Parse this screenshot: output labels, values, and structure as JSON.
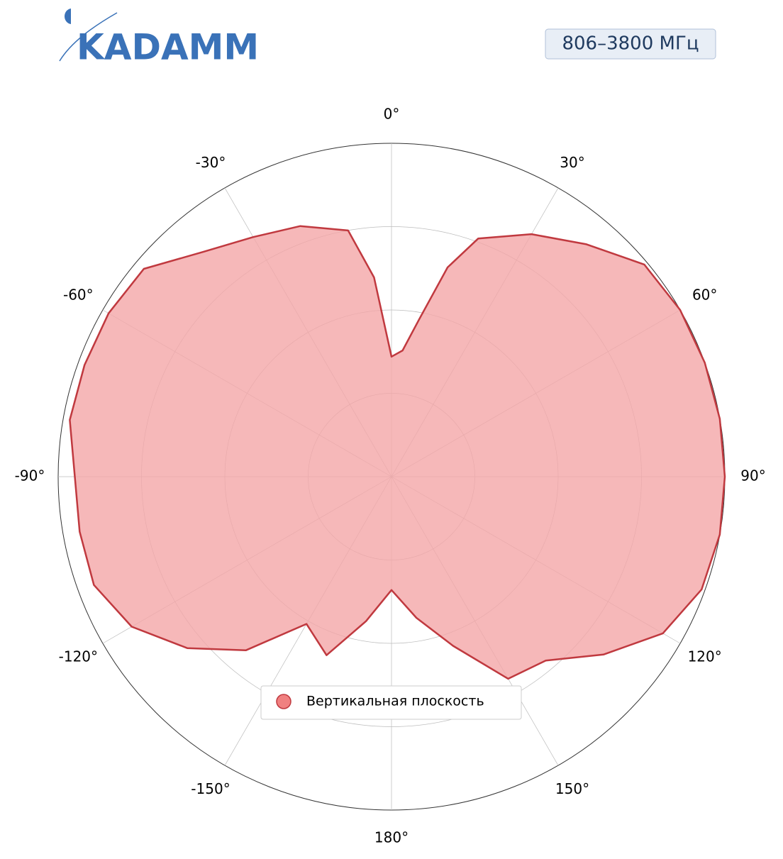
{
  "header": {
    "logo": "KADAMM",
    "band": "806–3800 МГц"
  },
  "chart_data": {
    "type": "polar",
    "theta": [
      -180,
      -170,
      -160,
      -150,
      -140,
      -130,
      -120,
      -110,
      -100,
      -90,
      -80,
      -70,
      -60,
      -50,
      -40,
      -30,
      -20,
      -10,
      -5,
      0,
      5,
      10,
      15,
      20,
      30,
      40,
      50,
      60,
      70,
      80,
      90,
      100,
      110,
      120,
      130,
      140,
      150,
      160,
      170
    ],
    "series": [
      {
        "name": "Вертикальная плоскость",
        "color": "#c0393f",
        "fill": "#f4a6a8",
        "values": [
          0.34,
          0.44,
          0.57,
          0.51,
          0.68,
          0.8,
          0.9,
          0.95,
          0.95,
          0.95,
          0.98,
          0.98,
          0.98,
          0.97,
          0.88,
          0.83,
          0.8,
          0.75,
          0.6,
          0.36,
          0.38,
          0.48,
          0.65,
          0.76,
          0.84,
          0.91,
          0.99,
          1.0,
          1.0,
          1.0,
          1.0,
          1.0,
          0.99,
          0.94,
          0.83,
          0.72,
          0.7,
          0.54,
          0.43
        ]
      }
    ],
    "rlim": [
      0,
      1
    ],
    "rticks": [
      0.25,
      0.5,
      0.75,
      1
    ],
    "thetaticks": [
      {
        "value": 0,
        "label": "0°"
      },
      {
        "value": 30,
        "label": "30°"
      },
      {
        "value": 60,
        "label": "60°"
      },
      {
        "value": 90,
        "label": "90°"
      },
      {
        "value": 120,
        "label": "120°"
      },
      {
        "value": 150,
        "label": "150°"
      },
      {
        "value": 180,
        "label": "180°"
      },
      {
        "value": -150,
        "label": "-150°"
      },
      {
        "value": -120,
        "label": "-120°"
      },
      {
        "value": -90,
        "label": "-90°"
      },
      {
        "value": -60,
        "label": "-60°"
      },
      {
        "value": -30,
        "label": "-30°"
      }
    ],
    "legend": "bottom"
  }
}
